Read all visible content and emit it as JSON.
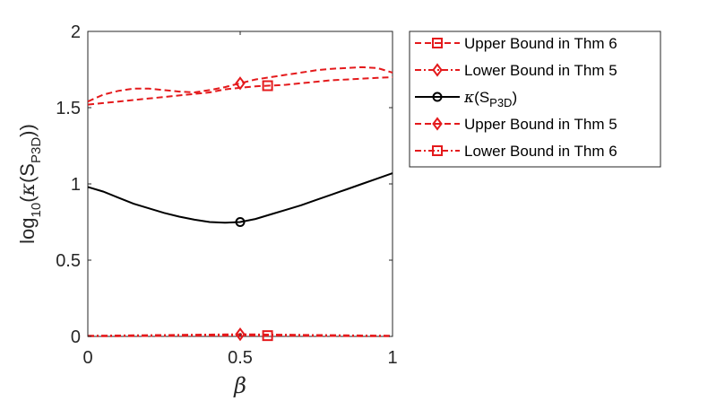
{
  "chart_data": {
    "type": "line",
    "title": "",
    "xlabel": "β",
    "ylabel": "log₁₀(κ(S_P3D))",
    "ylabel_parts": {
      "prefix": "log",
      "sub1": "10",
      "mid": "(",
      "kappa": "κ",
      "s": "(S",
      "sub2": "P3D",
      "close": "))"
    },
    "xlim": [
      0,
      1
    ],
    "ylim": [
      0,
      2
    ],
    "xticks": [
      "0",
      "0.5",
      "1"
    ],
    "xtick_values": [
      0,
      0.5,
      1
    ],
    "yticks": [
      "0",
      "0.5",
      "1",
      "1.5",
      "2"
    ],
    "ytick_values": [
      0,
      0.5,
      1,
      1.5,
      2
    ],
    "grid": false,
    "legend_position": "outside-right",
    "x": [
      0,
      0.05,
      0.1,
      0.15,
      0.2,
      0.25,
      0.3,
      0.35,
      0.4,
      0.45,
      0.5,
      0.55,
      0.6,
      0.65,
      0.7,
      0.75,
      0.8,
      0.85,
      0.9,
      0.95,
      1
    ],
    "series": [
      {
        "name": "Upper Bound in Thm 6",
        "color": "#e41a1c",
        "dash": "dashed",
        "marker": "square",
        "marker_x": 0.59,
        "values": [
          1.52,
          1.53,
          1.54,
          1.55,
          1.56,
          1.57,
          1.58,
          1.59,
          1.6,
          1.62,
          1.63,
          1.64,
          1.645,
          1.65,
          1.66,
          1.67,
          1.68,
          1.685,
          1.69,
          1.695,
          1.7
        ]
      },
      {
        "name": "Lower Bound in Thm 5",
        "color": "#e41a1c",
        "dash": "dashdot",
        "marker": "diamond",
        "marker_x": 0.5,
        "values": [
          0.004,
          0.005,
          0.006,
          0.007,
          0.008,
          0.009,
          0.01,
          0.011,
          0.012,
          0.013,
          0.014,
          0.013,
          0.012,
          0.011,
          0.01,
          0.009,
          0.008,
          0.007,
          0.006,
          0.005,
          0.004
        ]
      },
      {
        "name": "κ(S_P3D)",
        "label_parts": {
          "kappa": "κ",
          "s": "(S",
          "sub": "P3D",
          "close": ")"
        },
        "color": "#000000",
        "dash": "solid",
        "marker": "circle",
        "marker_x": 0.5,
        "values": [
          0.98,
          0.95,
          0.91,
          0.87,
          0.84,
          0.81,
          0.785,
          0.765,
          0.75,
          0.745,
          0.75,
          0.77,
          0.8,
          0.83,
          0.86,
          0.895,
          0.93,
          0.965,
          1.0,
          1.035,
          1.07
        ]
      },
      {
        "name": "Upper Bound in Thm 5",
        "color": "#e41a1c",
        "dash": "dashed",
        "marker": "diamond",
        "marker_x": 0.5,
        "values": [
          1.54,
          1.585,
          1.61,
          1.625,
          1.625,
          1.615,
          1.605,
          1.6,
          1.615,
          1.635,
          1.66,
          1.685,
          1.7,
          1.715,
          1.73,
          1.745,
          1.755,
          1.76,
          1.765,
          1.76,
          1.73
        ]
      },
      {
        "name": "Lower Bound in Thm 6",
        "color": "#e41a1c",
        "dash": "dashdot",
        "marker": "square",
        "marker_x": 0.59,
        "values": [
          0.001,
          0.0015,
          0.002,
          0.0025,
          0.003,
          0.0035,
          0.004,
          0.0045,
          0.005,
          0.0055,
          0.006,
          0.0055,
          0.005,
          0.0045,
          0.004,
          0.0035,
          0.003,
          0.0025,
          0.002,
          0.0015,
          0.001
        ]
      }
    ]
  }
}
